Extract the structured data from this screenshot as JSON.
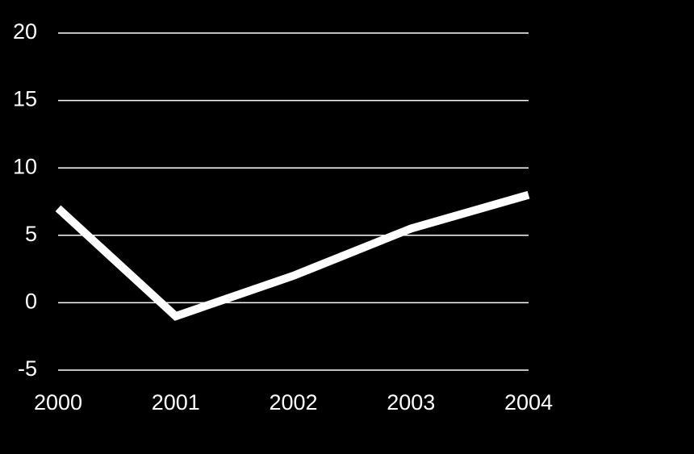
{
  "chart_data": {
    "type": "line",
    "x": [
      2000,
      2001,
      2002,
      2003,
      2004
    ],
    "xlim": [
      2000,
      2004
    ],
    "xticks": [
      2000,
      2001,
      2002,
      2003,
      2004
    ],
    "series": [
      {
        "color": "#ffffff",
        "values": [
          7,
          -1,
          2,
          5.5,
          8
        ]
      }
    ],
    "ylim": [
      -5,
      20
    ],
    "yticks": [
      -5,
      0,
      5,
      10,
      15,
      20
    ],
    "grid": true
  }
}
